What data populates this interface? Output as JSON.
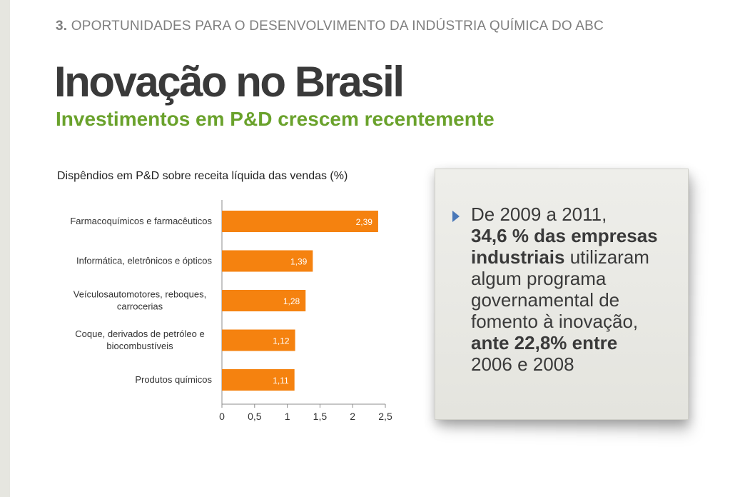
{
  "header": {
    "section_number": "3.",
    "section_title": "OPORTUNIDADES PARA O DESENVOLVIMENTO DA INDÚSTRIA QUÍMICA DO ABC",
    "title": "Inovação no Brasil",
    "subtitle": "Investimentos em P&D crescem recentemente"
  },
  "chart_data": {
    "type": "bar",
    "orientation": "horizontal",
    "title": "Dispêndios em P&D sobre receita líquida das vendas (%)",
    "categories": [
      [
        "Farmacoquímicos e farmacêuticos"
      ],
      [
        "Informática, eletrônicos e ópticos"
      ],
      [
        "Veículosautomotores, reboques,",
        "carrocerias"
      ],
      [
        "Coque, derivados de petróleo e",
        "biocombustíveis"
      ],
      [
        "Produtos químicos"
      ]
    ],
    "values": [
      2.39,
      1.39,
      1.28,
      1.12,
      1.11
    ],
    "value_labels": [
      "2,39",
      "1,39",
      "1,28",
      "1,12",
      "1,11"
    ],
    "xlim": [
      0,
      2.5
    ],
    "xticks": [
      0,
      0.5,
      1,
      1.5,
      2,
      2.5
    ],
    "xtick_labels": [
      "0",
      "0,5",
      "1",
      "1,5",
      "2",
      "2,5"
    ],
    "bar_color": "#f5820f",
    "grid": false
  },
  "note": {
    "line1": "De 2009 a 2011,",
    "bold1": "34,6 % das empresas industriais",
    "text2": " utilizaram algum programa governamental de fomento à inovação, ",
    "bold2": "ante 22,8% entre",
    "text3": " 2006 e 2008",
    "bullet_color": "#4a78b8"
  }
}
